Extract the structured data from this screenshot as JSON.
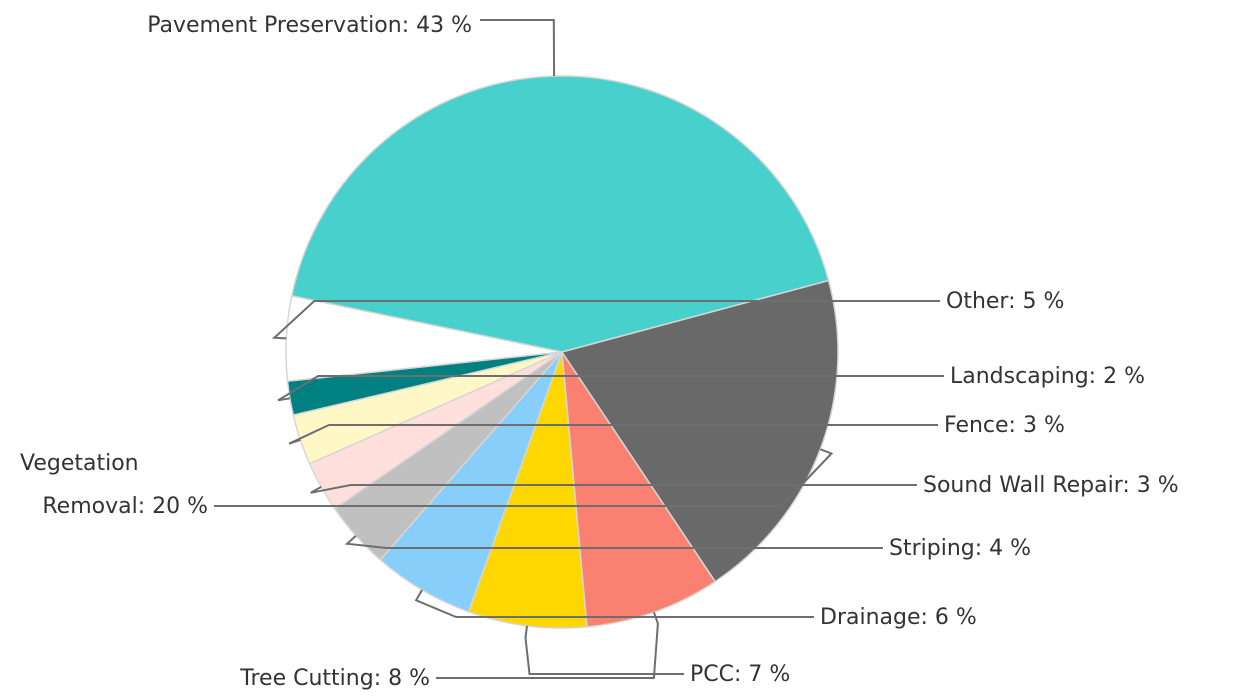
{
  "chart_data": {
    "type": "pie",
    "title": "",
    "slices": [
      {
        "label": "Pavement Preservation",
        "text": "Pavement Preservation: 43 %",
        "value": 43,
        "color": "#48d0cc"
      },
      {
        "label": "Other",
        "text": "Other: 5 %",
        "value": 5,
        "color": "#ffffff"
      },
      {
        "label": "Landscaping",
        "text": "Landscaping: 2 %",
        "value": 2,
        "color": "#008080"
      },
      {
        "label": "Fence",
        "text": "Fence: 3 %",
        "value": 3,
        "color": "#fff8c6"
      },
      {
        "label": "Sound Wall Repair",
        "text": "Sound Wall Repair: 3 %",
        "value": 3,
        "color": "#ffdfdc"
      },
      {
        "label": "Striping",
        "text": "Striping: 4 %",
        "value": 4,
        "color": "#c0c0c0"
      },
      {
        "label": "Drainage",
        "text": "Drainage: 6 %",
        "value": 6,
        "color": "#87cefa"
      },
      {
        "label": "PCC",
        "text": "PCC: 7 %",
        "value": 7,
        "color": "#ffd700"
      },
      {
        "label": "Tree Cutting",
        "text": "Tree Cutting: 8 %",
        "value": 8,
        "color": "#fa8072"
      },
      {
        "label": "Vegetation Removal",
        "text_lines": [
          "Vegetation",
          "Removal: 20 %"
        ],
        "value": 20,
        "color": "#696969"
      }
    ]
  }
}
